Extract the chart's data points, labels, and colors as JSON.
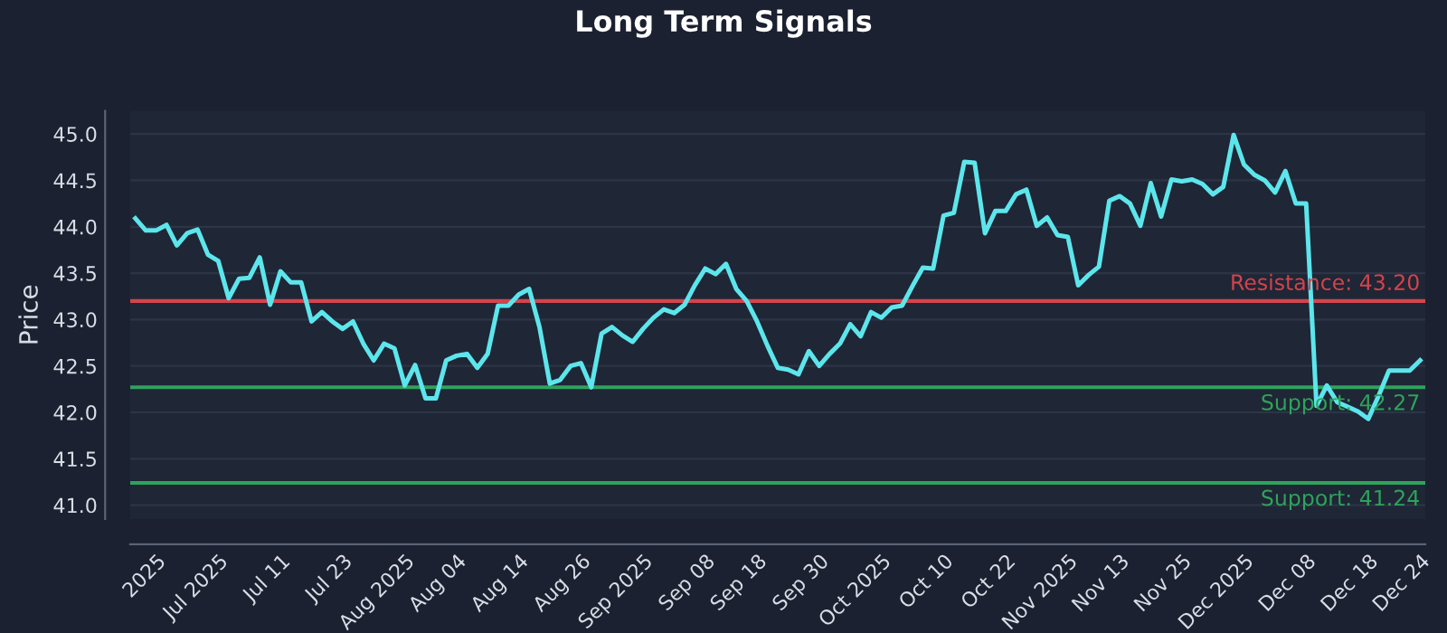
{
  "chart_data": {
    "type": "line",
    "title": "Long Term Signals",
    "ylabel": "Price",
    "categories": [
      null,
      null,
      "2025",
      null,
      null,
      null,
      null,
      null,
      "Jul 2025",
      null,
      null,
      null,
      null,
      null,
      "Jul 11",
      null,
      null,
      null,
      null,
      null,
      "Jul 23",
      null,
      null,
      null,
      null,
      null,
      "Aug 2025",
      null,
      null,
      null,
      null,
      "Aug 04",
      null,
      null,
      null,
      null,
      null,
      "Aug 14",
      null,
      null,
      null,
      null,
      null,
      "Aug 26",
      null,
      null,
      null,
      null,
      null,
      "Sep 2025",
      null,
      null,
      null,
      null,
      null,
      "Sep 08",
      null,
      null,
      null,
      null,
      "Sep 18",
      null,
      null,
      null,
      null,
      null,
      "Sep 30",
      null,
      null,
      null,
      null,
      null,
      "Oct 2025",
      null,
      null,
      null,
      null,
      null,
      "Oct 10",
      null,
      null,
      null,
      null,
      null,
      "Oct 22",
      null,
      null,
      null,
      null,
      null,
      "Nov 2025",
      null,
      null,
      null,
      null,
      "Nov 13",
      null,
      null,
      null,
      null,
      null,
      "Nov 25",
      null,
      null,
      null,
      null,
      null,
      "Dec 2025",
      null,
      null,
      null,
      null,
      null,
      "Dec 08",
      null,
      null,
      null,
      null,
      null,
      "Dec 18",
      null,
      null,
      null,
      null,
      "Dec 24"
    ],
    "series": [
      {
        "color": "#5ce6ec",
        "values": [
          44.09,
          43.96,
          43.96,
          44.02,
          43.8,
          43.93,
          43.97,
          43.7,
          43.63,
          43.23,
          43.44,
          43.45,
          43.67,
          43.16,
          43.52,
          43.4,
          43.4,
          42.98,
          43.08,
          42.98,
          42.9,
          42.98,
          42.74,
          42.56,
          42.74,
          42.69,
          42.29,
          42.51,
          42.15,
          42.15,
          42.56,
          42.61,
          42.63,
          42.48,
          42.63,
          43.15,
          43.15,
          43.27,
          43.33,
          42.92,
          42.31,
          42.35,
          42.5,
          42.53,
          42.27,
          42.85,
          42.92,
          42.83,
          42.76,
          42.9,
          43.02,
          43.11,
          43.07,
          43.16,
          43.37,
          43.55,
          43.49,
          43.6,
          43.33,
          43.2,
          42.98,
          42.72,
          42.48,
          42.46,
          42.41,
          42.66,
          42.5,
          42.63,
          42.74,
          42.95,
          42.82,
          43.08,
          43.02,
          43.13,
          43.15,
          43.36,
          43.56,
          43.55,
          44.12,
          44.15,
          44.7,
          44.69,
          43.93,
          44.17,
          44.17,
          44.35,
          44.4,
          44.01,
          44.1,
          43.91,
          43.89,
          43.37,
          43.48,
          43.57,
          44.28,
          44.33,
          44.25,
          44.01,
          44.47,
          44.11,
          44.51,
          44.49,
          44.51,
          44.46,
          44.35,
          44.43,
          44.99,
          44.67,
          44.56,
          44.5,
          44.37,
          44.6,
          44.25,
          44.25,
          42.07,
          42.29,
          42.11,
          42.06,
          42.01,
          41.93,
          42.18,
          42.45,
          42.45,
          42.45,
          42.56
        ]
      }
    ],
    "ylim": [
      40.85,
      45.25
    ],
    "yticks": [
      {
        "value": 41,
        "label": "41.0"
      },
      {
        "value": 41.5,
        "label": "41.5"
      },
      {
        "value": 42,
        "label": "42.0"
      },
      {
        "value": 42.5,
        "label": "42.5"
      },
      {
        "value": 43,
        "label": "43.0"
      },
      {
        "value": 43.5,
        "label": "43.5"
      },
      {
        "value": 44,
        "label": "44.0"
      },
      {
        "value": 44.5,
        "label": "44.5"
      },
      {
        "value": 45,
        "label": "45.0"
      }
    ],
    "grid": "y",
    "line_style": "solid",
    "marker": "none",
    "ref_lines": [
      {
        "axis": "y",
        "value": 43.2,
        "label": "Resistance: 43.20",
        "color": "#d2444c"
      },
      {
        "axis": "y",
        "value": 42.27,
        "label": "Support: 42.27",
        "color": "#2ea35a"
      },
      {
        "axis": "y",
        "value": 41.24,
        "label": "Support: 41.24",
        "color": "#2ea35a"
      }
    ]
  }
}
